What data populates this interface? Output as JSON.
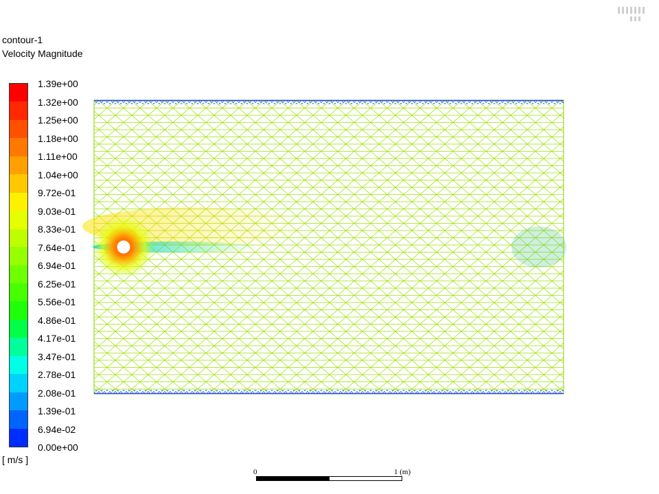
{
  "contour": {
    "name": "contour-1",
    "variable": "Velocity Magnitude",
    "units": "[ m/s ]"
  },
  "colorbar": {
    "tick_labels": [
      "1.39e+00",
      "1.32e+00",
      "1.25e+00",
      "1.18e+00",
      "1.11e+00",
      "1.04e+00",
      "9.72e-01",
      "9.03e-01",
      "8.33e-01",
      "7.64e-01",
      "6.94e-01",
      "6.25e-01",
      "5.56e-01",
      "4.86e-01",
      "4.17e-01",
      "3.47e-01",
      "2.78e-01",
      "2.08e-01",
      "1.39e-01",
      "6.94e-02",
      "0.00e+00"
    ],
    "colors": [
      "#ff0000",
      "#ff2800",
      "#ff5000",
      "#ff7800",
      "#ffa000",
      "#ffc800",
      "#fff000",
      "#e6ff00",
      "#beff00",
      "#96ff00",
      "#6eff00",
      "#46ff00",
      "#1eff0a",
      "#00ff46",
      "#00ff9b",
      "#00ffe6",
      "#00d2ff",
      "#009bff",
      "#0064ff",
      "#002dff"
    ]
  },
  "scale": {
    "start_label": "0",
    "end_label": "1 (m)"
  },
  "field_colors": {
    "bulk": "#a5e600",
    "wall": "#2040ff",
    "wake": "#e0e000",
    "stagnation": "#ff4000",
    "low_speed": "#00c8ff"
  }
}
